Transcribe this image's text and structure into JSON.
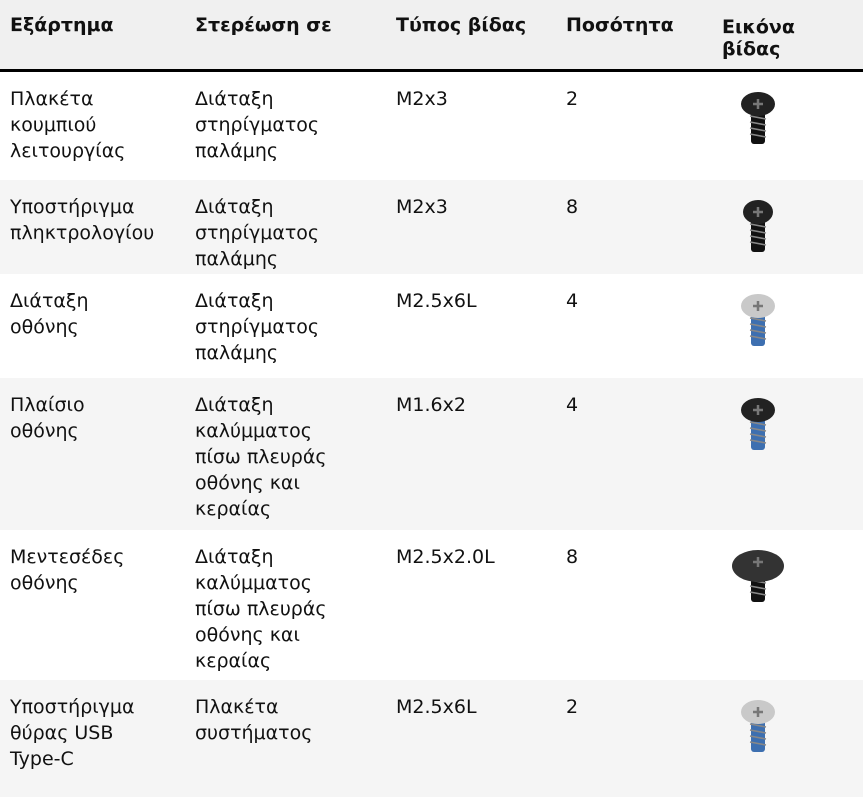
{
  "table": {
    "header": [
      [
        "Εξάρτημα"
      ],
      [
        "Στερέωση σε"
      ],
      [
        "Τύπος βίδας"
      ],
      [
        "Ποσότητα"
      ],
      [
        "Εικόνα",
        "βίδας"
      ]
    ],
    "rows": [
      [
        [
          "Πλακέτα",
          "κουμπιού",
          "λειτουργίας"
        ],
        [
          "Διάταξη",
          "στηρίγματος",
          "παλάμης"
        ],
        [
          "M2x3"
        ],
        [
          "2"
        ]
      ],
      [
        [
          "Υποστήριγμα",
          "πληκτρολογίου"
        ],
        [
          "Διάταξη",
          "στηρίγματος",
          "παλάμης"
        ],
        [
          "M2x3"
        ],
        [
          "8"
        ]
      ],
      [
        [
          "Διάταξη",
          "οθόνης"
        ],
        [
          "Διάταξη",
          "στηρίγματος",
          "παλάμης"
        ],
        [
          "M2.5x6L"
        ],
        [
          "4"
        ]
      ],
      [
        [
          "Πλαίσιο",
          "οθόνης"
        ],
        [
          "Διάταξη",
          "καλύμματος",
          "πίσω πλευράς",
          "οθόνης και",
          "κεραίας"
        ],
        [
          "M1.6x2"
        ],
        [
          "4"
        ]
      ],
      [
        [
          "Μεντεσέδες",
          "οθόνης"
        ],
        [
          "Διάταξη",
          "καλύμματος",
          "πίσω πλευράς",
          "οθόνης και",
          "κεραίας"
        ],
        [
          "M2.5x2.0L"
        ],
        [
          "8"
        ]
      ],
      [
        [
          "Υποστήριγμα",
          "θύρας USB",
          "Type-C"
        ],
        [
          "Πλακέτα",
          "συστήματος"
        ],
        [
          "M2.5x6L"
        ],
        [
          "2"
        ]
      ]
    ]
  }
}
